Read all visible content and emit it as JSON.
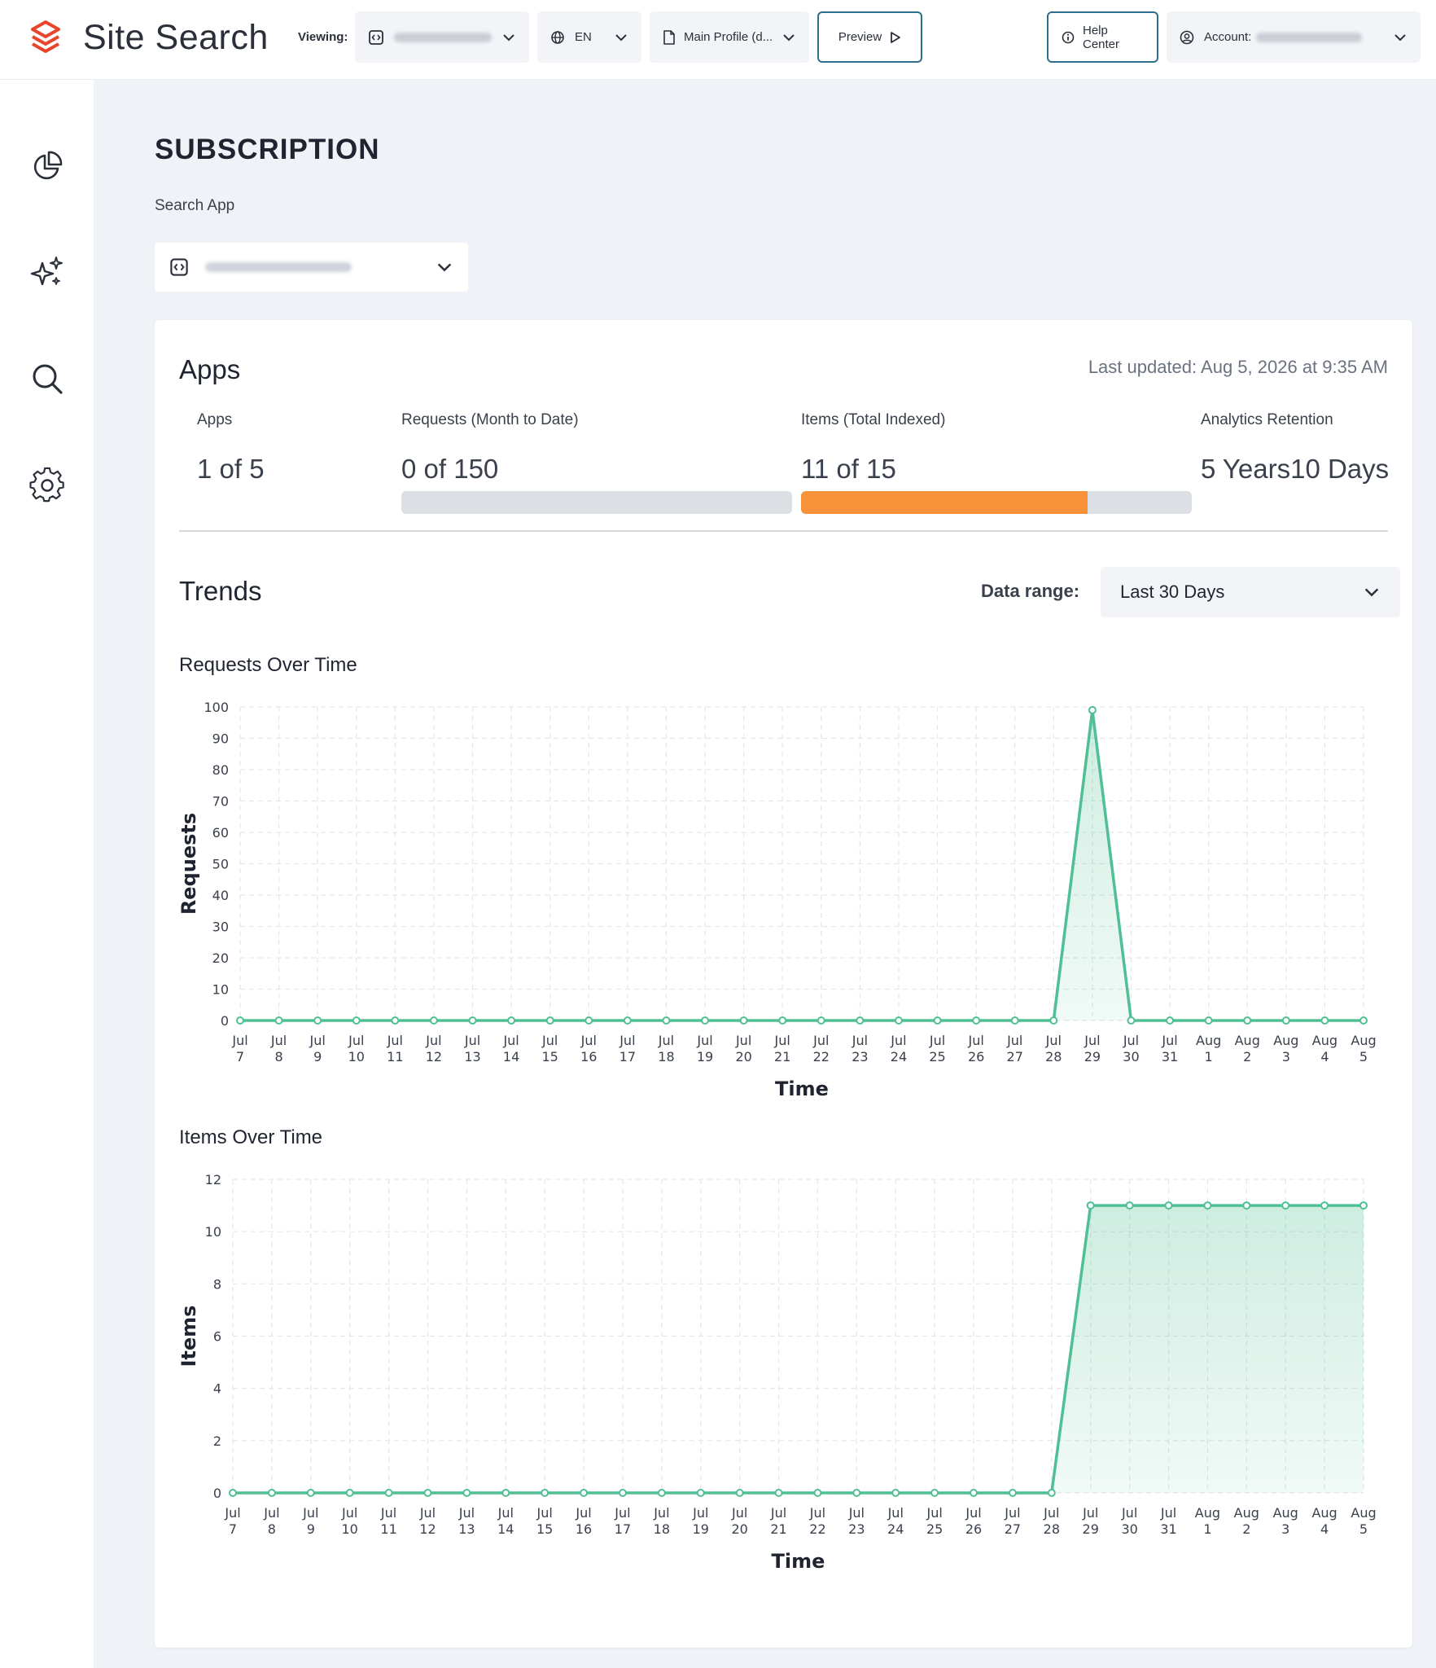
{
  "header": {
    "brand_name": "Site Search",
    "viewing_label": "Viewing:",
    "language": "EN",
    "profile": "Main Profile (d...",
    "preview_label": "Preview",
    "help_label": "Help Center",
    "account_label": "Account:"
  },
  "sidebar": {
    "items": [
      {
        "icon": "pie-chart-icon"
      },
      {
        "icon": "sparkles-icon"
      },
      {
        "icon": "search-icon"
      },
      {
        "icon": "gear-icon"
      }
    ]
  },
  "page": {
    "title": "SUBSCRIPTION",
    "search_app_label": "Search App"
  },
  "apps": {
    "title": "Apps",
    "last_updated": "Last updated: Aug 5, 2026 at 9:35 AM",
    "metrics": [
      {
        "label": "Apps",
        "value": "1 of 5"
      },
      {
        "label": "Requests (Month to Date)",
        "value": "0 of 150",
        "progress": 0
      },
      {
        "label": "Items (Total Indexed)",
        "value": "11 of 15",
        "progress": 0.733
      },
      {
        "label": "Analytics Retention",
        "value": "5 Years10 Days"
      }
    ]
  },
  "trends": {
    "title": "Trends",
    "range_label": "Data range:",
    "range_value": "Last 30 Days"
  },
  "colors": {
    "accent": "#4fbf94",
    "progress_orange": "#f7923a",
    "brand_red": "#e8452c"
  },
  "chart_data": [
    {
      "type": "area",
      "title": "Requests Over Time",
      "xlabel": "Time",
      "ylabel": "Requests",
      "ylim": [
        0,
        100
      ],
      "yticks": [
        0,
        10,
        20,
        30,
        40,
        50,
        60,
        70,
        80,
        90,
        100
      ],
      "grid": true,
      "categories": [
        [
          "Jul",
          "7"
        ],
        [
          "Jul",
          "8"
        ],
        [
          "Jul",
          "9"
        ],
        [
          "Jul",
          "10"
        ],
        [
          "Jul",
          "11"
        ],
        [
          "Jul",
          "12"
        ],
        [
          "Jul",
          "13"
        ],
        [
          "Jul",
          "14"
        ],
        [
          "Jul",
          "15"
        ],
        [
          "Jul",
          "16"
        ],
        [
          "Jul",
          "17"
        ],
        [
          "Jul",
          "18"
        ],
        [
          "Jul",
          "19"
        ],
        [
          "Jul",
          "20"
        ],
        [
          "Jul",
          "21"
        ],
        [
          "Jul",
          "22"
        ],
        [
          "Jul",
          "23"
        ],
        [
          "Jul",
          "24"
        ],
        [
          "Jul",
          "25"
        ],
        [
          "Jul",
          "26"
        ],
        [
          "Jul",
          "27"
        ],
        [
          "Jul",
          "28"
        ],
        [
          "Jul",
          "29"
        ],
        [
          "Jul",
          "30"
        ],
        [
          "Jul",
          "31"
        ],
        [
          "Aug",
          "1"
        ],
        [
          "Aug",
          "2"
        ],
        [
          "Aug",
          "3"
        ],
        [
          "Aug",
          "4"
        ],
        [
          "Aug",
          "5"
        ]
      ],
      "values": [
        0,
        0,
        0,
        0,
        0,
        0,
        0,
        0,
        0,
        0,
        0,
        0,
        0,
        0,
        0,
        0,
        0,
        0,
        0,
        0,
        0,
        0,
        99,
        0,
        0,
        0,
        0,
        0,
        0,
        0
      ]
    },
    {
      "type": "area",
      "title": "Items Over Time",
      "xlabel": "Time",
      "ylabel": "Items",
      "ylim": [
        0,
        12
      ],
      "yticks": [
        0,
        2,
        4,
        6,
        8,
        10,
        12
      ],
      "grid": true,
      "categories": [
        [
          "Jul",
          "7"
        ],
        [
          "Jul",
          "8"
        ],
        [
          "Jul",
          "9"
        ],
        [
          "Jul",
          "10"
        ],
        [
          "Jul",
          "11"
        ],
        [
          "Jul",
          "12"
        ],
        [
          "Jul",
          "13"
        ],
        [
          "Jul",
          "14"
        ],
        [
          "Jul",
          "15"
        ],
        [
          "Jul",
          "16"
        ],
        [
          "Jul",
          "17"
        ],
        [
          "Jul",
          "18"
        ],
        [
          "Jul",
          "19"
        ],
        [
          "Jul",
          "20"
        ],
        [
          "Jul",
          "21"
        ],
        [
          "Jul",
          "22"
        ],
        [
          "Jul",
          "23"
        ],
        [
          "Jul",
          "24"
        ],
        [
          "Jul",
          "25"
        ],
        [
          "Jul",
          "26"
        ],
        [
          "Jul",
          "27"
        ],
        [
          "Jul",
          "28"
        ],
        [
          "Jul",
          "29"
        ],
        [
          "Jul",
          "30"
        ],
        [
          "Jul",
          "31"
        ],
        [
          "Aug",
          "1"
        ],
        [
          "Aug",
          "2"
        ],
        [
          "Aug",
          "3"
        ],
        [
          "Aug",
          "4"
        ],
        [
          "Aug",
          "5"
        ]
      ],
      "values": [
        0,
        0,
        0,
        0,
        0,
        0,
        0,
        0,
        0,
        0,
        0,
        0,
        0,
        0,
        0,
        0,
        0,
        0,
        0,
        0,
        0,
        0,
        11,
        11,
        11,
        11,
        11,
        11,
        11,
        11
      ]
    }
  ]
}
